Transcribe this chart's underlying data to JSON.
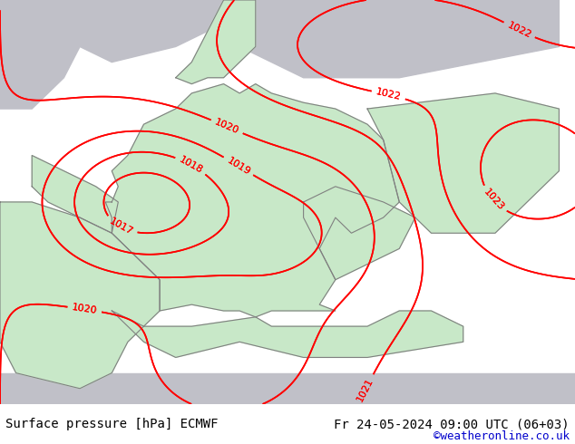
{
  "title_left": "Surface pressure [hPa] ECMWF",
  "title_right": "Fr 24-05-2024 09:00 UTC (06+03)",
  "credit": "©weatheronline.co.uk",
  "bg_color": "#c8e8c8",
  "land_color": "#c8e8c8",
  "sea_color": "#d8d8d8",
  "contour_color": "#ff0000",
  "border_color": "#808080",
  "label_color": "#ff0000",
  "bottom_bar_color": "#ffffff",
  "bottom_text_color": "#000000",
  "credit_color": "#0000cc",
  "figsize": [
    6.34,
    4.9
  ],
  "dpi": 100
}
